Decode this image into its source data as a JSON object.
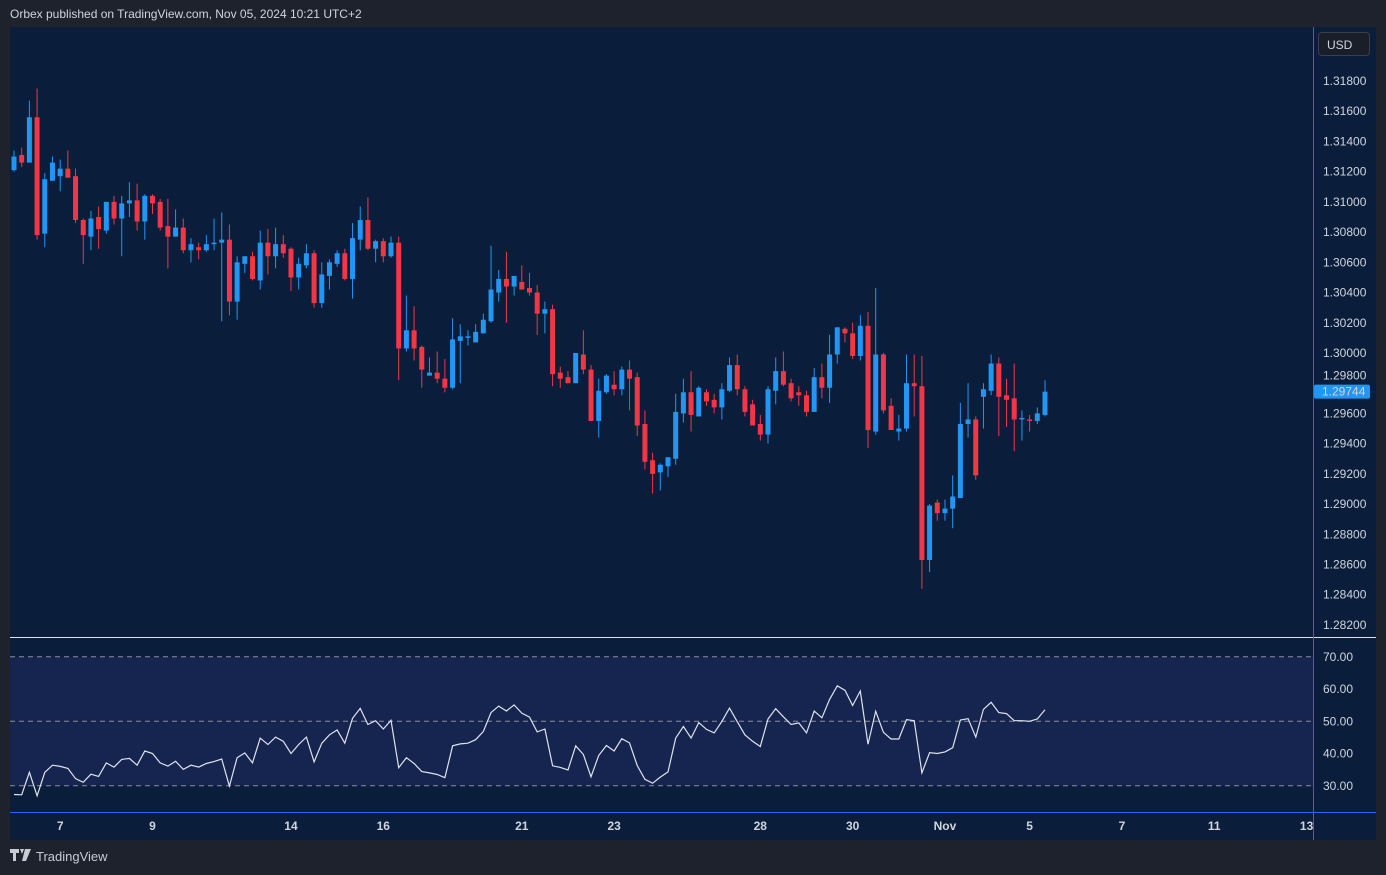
{
  "header": {
    "published": "Orbex published on TradingView.com, Nov 05, 2024 10:21 UTC+2"
  },
  "currency_button": "USD",
  "footer": {
    "brand": "TradingView",
    "logo": "TV"
  },
  "colors": {
    "up": "#2196f3",
    "down": "#f23645",
    "background": "#0a1e3b",
    "rsi_band": "#162550",
    "rsi_line": "#e0e3eb",
    "last_price_label": "#2196f3"
  },
  "chart_data": [
    {
      "type": "candlestick",
      "ylim": [
        1.281,
        1.3195
      ],
      "grid": false,
      "y_ticks": [
        "1.31800",
        "1.31600",
        "1.31400",
        "1.31200",
        "1.31000",
        "1.30800",
        "1.30600",
        "1.30400",
        "1.30200",
        "1.30000",
        "1.29800",
        "1.29600",
        "1.29400",
        "1.29200",
        "1.29000",
        "1.28800",
        "1.28600",
        "1.28400",
        "1.28200"
      ],
      "x_ticks": [
        "7",
        "9",
        "14",
        "16",
        "21",
        "23",
        "28",
        "30",
        "Nov",
        "5",
        "7",
        "11",
        "13"
      ],
      "last_price": "1.29744",
      "ohlc": [
        [
          1.3121,
          1.3134,
          1.312,
          1.313
        ],
        [
          1.3131,
          1.3136,
          1.3123,
          1.3126
        ],
        [
          1.3126,
          1.3167,
          1.3126,
          1.3156
        ],
        [
          1.3156,
          1.3175,
          1.3075,
          1.3078
        ],
        [
          1.3079,
          1.3119,
          1.307,
          1.3115
        ],
        [
          1.3114,
          1.313,
          1.3114,
          1.3126
        ],
        [
          1.3117,
          1.3128,
          1.3107,
          1.3122
        ],
        [
          1.3122,
          1.3134,
          1.3116,
          1.3116
        ],
        [
          1.3117,
          1.3122,
          1.3086,
          1.3088
        ],
        [
          1.3088,
          1.3089,
          1.3059,
          1.3078
        ],
        [
          1.3077,
          1.3094,
          1.3068,
          1.3089
        ],
        [
          1.309,
          1.3097,
          1.3069,
          1.3082
        ],
        [
          1.3081,
          1.31,
          1.3079,
          1.31
        ],
        [
          1.31,
          1.3104,
          1.3085,
          1.3089
        ],
        [
          1.3089,
          1.3104,
          1.3064,
          1.3099
        ],
        [
          1.3099,
          1.3113,
          1.309,
          1.3101
        ],
        [
          1.3101,
          1.3112,
          1.3081,
          1.3087
        ],
        [
          1.3087,
          1.3105,
          1.3075,
          1.3104
        ],
        [
          1.3104,
          1.3105,
          1.3092,
          1.3099
        ],
        [
          1.31,
          1.3102,
          1.3081,
          1.3083
        ],
        [
          1.3084,
          1.3102,
          1.3056,
          1.3077
        ],
        [
          1.3077,
          1.3095,
          1.3077,
          1.3083
        ],
        [
          1.3083,
          1.3089,
          1.3066,
          1.3068
        ],
        [
          1.3068,
          1.3076,
          1.306,
          1.3072
        ],
        [
          1.307,
          1.3073,
          1.3062,
          1.3068
        ],
        [
          1.3068,
          1.3078,
          1.3067,
          1.3072
        ],
        [
          1.3072,
          1.3089,
          1.3068,
          1.3073
        ],
        [
          1.3073,
          1.3093,
          1.3021,
          1.3075
        ],
        [
          1.3075,
          1.3085,
          1.3025,
          1.3034
        ],
        [
          1.3034,
          1.3064,
          1.3022,
          1.306
        ],
        [
          1.3059,
          1.3064,
          1.3053,
          1.3064
        ],
        [
          1.3064,
          1.3067,
          1.3048,
          1.3049
        ],
        [
          1.3048,
          1.3081,
          1.3042,
          1.3073
        ],
        [
          1.3073,
          1.3082,
          1.3052,
          1.3064
        ],
        [
          1.3064,
          1.3083,
          1.3056,
          1.3072
        ],
        [
          1.3072,
          1.3078,
          1.3063,
          1.3066
        ],
        [
          1.3069,
          1.307,
          1.3041,
          1.305
        ],
        [
          1.305,
          1.3063,
          1.3042,
          1.3059
        ],
        [
          1.3058,
          1.3072,
          1.3056,
          1.3066
        ],
        [
          1.3066,
          1.3068,
          1.303,
          1.3033
        ],
        [
          1.3033,
          1.306,
          1.303,
          1.3052
        ],
        [
          1.3051,
          1.3062,
          1.3042,
          1.306
        ],
        [
          1.3059,
          1.3068,
          1.3057,
          1.3066
        ],
        [
          1.3066,
          1.3069,
          1.3048,
          1.3049
        ],
        [
          1.3049,
          1.3086,
          1.3036,
          1.3076
        ],
        [
          1.3075,
          1.3097,
          1.3068,
          1.3088
        ],
        [
          1.3088,
          1.3103,
          1.3068,
          1.3069
        ],
        [
          1.3069,
          1.3075,
          1.306,
          1.3074
        ],
        [
          1.3074,
          1.3076,
          1.306,
          1.3064
        ],
        [
          1.3064,
          1.3077,
          1.3063,
          1.3073
        ],
        [
          1.3073,
          1.3077,
          1.2982,
          1.3003
        ],
        [
          1.3003,
          1.3038,
          1.3001,
          1.3015
        ],
        [
          1.3015,
          1.3031,
          1.2995,
          1.3003
        ],
        [
          1.3004,
          1.3005,
          1.2977,
          1.2989
        ],
        [
          1.2985,
          1.2997,
          1.2985,
          1.2987
        ],
        [
          1.2987,
          1.3001,
          1.298,
          1.2983
        ],
        [
          1.2983,
          1.2996,
          1.2974,
          1.2977
        ],
        [
          1.2977,
          1.3023,
          1.2976,
          1.3009
        ],
        [
          1.3008,
          1.3019,
          1.298,
          1.3011
        ],
        [
          1.301,
          1.3015,
          1.3005,
          1.3011
        ],
        [
          1.3007,
          1.3019,
          1.3007,
          1.3014
        ],
        [
          1.3013,
          1.3026,
          1.3013,
          1.3022
        ],
        [
          1.3021,
          1.3071,
          1.302,
          1.3042
        ],
        [
          1.304,
          1.3055,
          1.3034,
          1.3049
        ],
        [
          1.3049,
          1.3067,
          1.302,
          1.3044
        ],
        [
          1.3044,
          1.3051,
          1.3038,
          1.3051
        ],
        [
          1.3047,
          1.3058,
          1.3042,
          1.3042
        ],
        [
          1.3043,
          1.3053,
          1.3038,
          1.304
        ],
        [
          1.304,
          1.3045,
          1.3012,
          1.3026
        ],
        [
          1.3026,
          1.3034,
          1.3013,
          1.3029
        ],
        [
          1.3029,
          1.3032,
          1.2978,
          1.2986
        ],
        [
          1.2987,
          1.2991,
          1.2977,
          1.2983
        ],
        [
          1.2984,
          1.2988,
          1.298,
          1.298
        ],
        [
          1.298,
          1.3,
          1.298,
          1.3
        ],
        [
          1.2999,
          1.3015,
          1.2986,
          1.2989
        ],
        [
          1.2989,
          1.2992,
          1.2955,
          1.2955
        ],
        [
          1.2955,
          1.2983,
          1.2944,
          1.2975
        ],
        [
          1.2974,
          1.2986,
          1.2973,
          1.2985
        ],
        [
          1.2979,
          1.2988,
          1.2972,
          1.2976
        ],
        [
          1.2976,
          1.2991,
          1.2972,
          1.2989
        ],
        [
          1.2989,
          1.2995,
          1.2962,
          1.2983
        ],
        [
          1.2984,
          1.2987,
          1.2945,
          1.2952
        ],
        [
          1.2953,
          1.2962,
          1.2923,
          1.2928
        ],
        [
          1.2929,
          1.2934,
          1.2907,
          1.292
        ],
        [
          1.2921,
          1.2927,
          1.2909,
          1.2926
        ],
        [
          1.2925,
          1.2931,
          1.2918,
          1.2931
        ],
        [
          1.293,
          1.2973,
          1.2926,
          1.2961
        ],
        [
          1.296,
          1.2983,
          1.2954,
          1.2974
        ],
        [
          1.2974,
          1.2988,
          1.2948,
          1.2959
        ],
        [
          1.2958,
          1.2978,
          1.2958,
          1.2977
        ],
        [
          1.2974,
          1.2976,
          1.2965,
          1.2968
        ],
        [
          1.2969,
          1.2973,
          1.296,
          1.2964
        ],
        [
          1.2964,
          1.298,
          1.2956,
          1.2976
        ],
        [
          1.2975,
          1.2997,
          1.2974,
          1.2992
        ],
        [
          1.2992,
          1.2999,
          1.2972,
          1.2976
        ],
        [
          1.2976,
          1.2978,
          1.2958,
          1.2961
        ],
        [
          1.2966,
          1.2969,
          1.2952,
          1.2952
        ],
        [
          1.2953,
          1.2959,
          1.2942,
          1.2946
        ],
        [
          1.2946,
          1.2978,
          1.294,
          1.2976
        ],
        [
          1.2975,
          1.2997,
          1.2966,
          1.2988
        ],
        [
          1.2988,
          1.3001,
          1.2978,
          1.2979
        ],
        [
          1.298,
          1.2983,
          1.2968,
          1.297
        ],
        [
          1.2974,
          1.2978,
          1.2965,
          1.2972
        ],
        [
          1.2972,
          1.2975,
          1.2958,
          1.2961
        ],
        [
          1.2961,
          1.299,
          1.2961,
          1.2984
        ],
        [
          1.2984,
          1.2993,
          1.297,
          1.2977
        ],
        [
          1.2977,
          1.3012,
          1.2967,
          1.2999
        ],
        [
          1.2999,
          1.3017,
          1.2993,
          1.3017
        ],
        [
          1.3016,
          1.3017,
          1.3007,
          1.3013
        ],
        [
          1.3013,
          1.302,
          1.2996,
          1.2998
        ],
        [
          1.2998,
          1.3025,
          1.2995,
          1.3018
        ],
        [
          1.3018,
          1.3027,
          1.2937,
          1.2949
        ],
        [
          1.2948,
          1.3043,
          1.2946,
          1.2999
        ],
        [
          1.2999,
          1.3,
          1.296,
          1.2962
        ],
        [
          1.2965,
          1.297,
          1.2949,
          1.2949
        ],
        [
          1.2948,
          1.2959,
          1.2942,
          1.295
        ],
        [
          1.295,
          1.2999,
          1.2948,
          1.298
        ],
        [
          1.298,
          1.2999,
          1.2958,
          1.2978
        ],
        [
          1.2978,
          1.2998,
          1.2844,
          1.2863
        ],
        [
          1.2863,
          1.29,
          1.2855,
          1.2899
        ],
        [
          1.2901,
          1.2903,
          1.2889,
          1.2894
        ],
        [
          1.2894,
          1.2903,
          1.2889,
          1.2897
        ],
        [
          1.2897,
          1.2919,
          1.2884,
          1.2905
        ],
        [
          1.2904,
          1.2967,
          1.2904,
          1.2953
        ],
        [
          1.2953,
          1.298,
          1.2944,
          1.2956
        ],
        [
          1.2956,
          1.2958,
          1.2916,
          1.2919
        ],
        [
          1.2971,
          1.298,
          1.295,
          1.2976
        ],
        [
          1.2975,
          1.2999,
          1.2972,
          1.2993
        ],
        [
          1.2993,
          1.2997,
          1.2945,
          1.2971
        ],
        [
          1.2972,
          1.2983,
          1.2951,
          1.2969
        ],
        [
          1.297,
          1.2993,
          1.2935,
          1.2956
        ],
        [
          1.2956,
          1.2962,
          1.2942,
          1.2957
        ],
        [
          1.2956,
          1.2959,
          1.2948,
          1.2955
        ],
        [
          1.2955,
          1.2964,
          1.2953,
          1.296
        ],
        [
          1.2959,
          1.2982,
          1.2958,
          1.29744
        ]
      ]
    },
    {
      "type": "line",
      "ylim": [
        20,
        77
      ],
      "levels": [
        70,
        50,
        30
      ],
      "y_ticks": [
        "70.00",
        "60.00",
        "50.00",
        "40.00",
        "30.00"
      ],
      "values": [
        27.3,
        27.2,
        34.2,
        26.9,
        34.2,
        36.4,
        36.0,
        35.4,
        32.2,
        31.1,
        33.6,
        32.9,
        37.1,
        35.8,
        38.2,
        38.5,
        36.4,
        40.8,
        40.0,
        37.1,
        36.1,
        37.6,
        35.1,
        36.4,
        35.8,
        36.9,
        37.5,
        38.3,
        29.9,
        38.7,
        40.2,
        37.1,
        44.8,
        42.8,
        45.1,
        43.8,
        40.0,
        42.8,
        45.1,
        37.4,
        43.2,
        45.8,
        47.3,
        43.2,
        50.9,
        54.0,
        49.0,
        50.2,
        47.6,
        50.3,
        35.6,
        38.7,
        36.9,
        34.4,
        34.0,
        33.5,
        32.5,
        42.4,
        43.0,
        43.2,
        44.3,
        46.8,
        52.7,
        54.7,
        53.2,
        55.1,
        52.5,
        51.3,
        46.7,
        47.6,
        36.2,
        35.7,
        34.9,
        42.4,
        39.7,
        32.8,
        39.4,
        42.5,
        40.8,
        44.6,
        43.3,
        36.3,
        32.0,
        30.8,
        32.7,
        34.3,
        44.8,
        48.4,
        44.8,
        49.6,
        47.5,
        46.4,
        49.9,
        54.1,
        49.9,
        45.8,
        43.8,
        42.2,
        50.7,
        53.9,
        51.4,
        49.0,
        49.5,
        46.4,
        53.2,
        51.1,
        56.8,
        61.0,
        59.6,
        54.9,
        59.4,
        42.9,
        53.1,
        46.6,
        44.5,
        44.5,
        50.5,
        50.2,
        34.0,
        40.3,
        40.0,
        40.5,
        41.8,
        50.4,
        50.8,
        45.1,
        53.7,
        55.9,
        52.7,
        52.4,
        50.2,
        50.2,
        50.0,
        50.7,
        53.6
      ]
    }
  ]
}
